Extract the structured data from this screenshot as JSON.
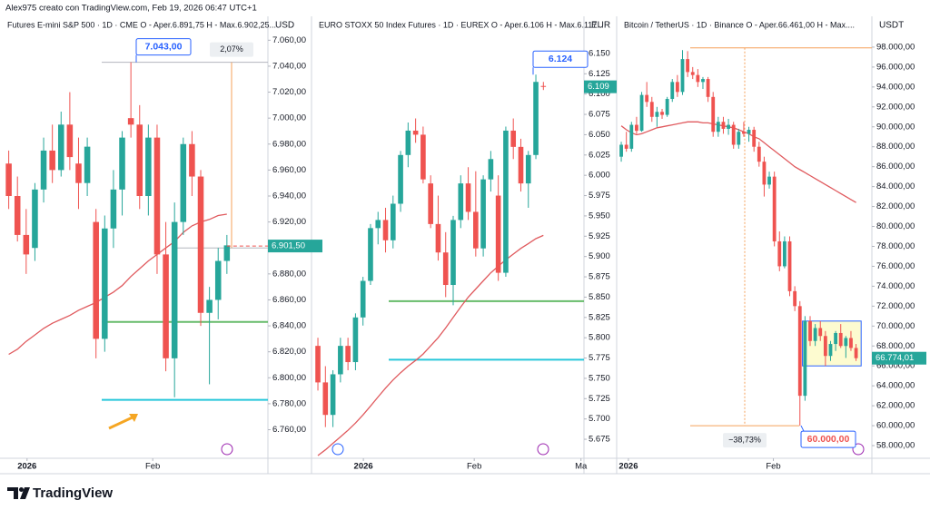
{
  "header": "Alex975 creato con TradingView.com, Feb 19, 2026 06:47 UTC+1",
  "footer": "TradingView",
  "chart_data": [
    {
      "type": "candlestick",
      "title": "Futures E-mini S&P 500 · 1D · CME  O - Aper.6.891,75  H - Max.6.902,25...",
      "currency": "USD",
      "up_color": "#26a69a",
      "down_color": "#ef5350",
      "ohlc": [
        [
          6965,
          6975,
          6930,
          6940
        ],
        [
          6940,
          6955,
          6905,
          6910
        ],
        [
          6910,
          6930,
          6880,
          6895
        ],
        [
          6900,
          6950,
          6890,
          6945
        ],
        [
          6945,
          6985,
          6935,
          6975
        ],
        [
          6975,
          6995,
          6950,
          6960
        ],
        [
          6960,
          7005,
          6955,
          6995
        ],
        [
          6995,
          7020,
          6960,
          6970
        ],
        [
          6965,
          6985,
          6930,
          6950
        ],
        [
          6950,
          6985,
          6940,
          6978
        ],
        [
          6920,
          6930,
          6815,
          6830
        ],
        [
          6830,
          6925,
          6820,
          6915
        ],
        [
          6915,
          6960,
          6900,
          6945
        ],
        [
          6945,
          6990,
          6925,
          6985
        ],
        [
          7000,
          7043,
          6985,
          6995
        ],
        [
          6995,
          7010,
          6930,
          6940
        ],
        [
          6940,
          6995,
          6925,
          6985
        ],
        [
          6985,
          6995,
          6880,
          6895
        ],
        [
          6895,
          6920,
          6805,
          6815
        ],
        [
          6815,
          6935,
          6785,
          6920
        ],
        [
          6920,
          6985,
          6910,
          6980
        ],
        [
          6980,
          6990,
          6940,
          6955
        ],
        [
          6955,
          6960,
          6840,
          6850
        ],
        [
          6850,
          6870,
          6795,
          6860
        ],
        [
          6860,
          6900,
          6845,
          6890
        ],
        [
          6890,
          6910,
          6880,
          6902
        ]
      ],
      "ma": {
        "color": "#e05a5e",
        "values": [
          6818,
          6822,
          6828,
          6833,
          6838,
          6842,
          6845,
          6848,
          6852,
          6855,
          6858,
          6862,
          6866,
          6871,
          6878,
          6884,
          6890,
          6895,
          6900,
          6905,
          6912,
          6917,
          6920,
          6922,
          6925,
          6926
        ]
      },
      "levels": [
        {
          "value": 6843,
          "color": "#66bb6a"
        },
        {
          "value": 6783,
          "color": "#26c6da"
        }
      ],
      "ylim": [
        6738,
        7077
      ],
      "yticks": [
        {
          "value": 6760,
          "label": "6.760,00"
        },
        {
          "value": 6780,
          "label": "6.780,00"
        },
        {
          "value": 6800,
          "label": "6.800,00"
        },
        {
          "value": 6820,
          "label": "6.820,00"
        },
        {
          "value": 6840,
          "label": "6.840,00"
        },
        {
          "value": 6860,
          "label": "6.860,00"
        },
        {
          "value": 6880,
          "label": "6.880,00"
        },
        {
          "value": 6900,
          "label": "6.900,00"
        },
        {
          "value": 6920,
          "label": "6.920,00"
        },
        {
          "value": 6940,
          "label": "6.940,00"
        },
        {
          "value": 6960,
          "label": "6.960,00"
        },
        {
          "value": 6980,
          "label": "6.980,00"
        },
        {
          "value": 7000,
          "label": "7.000,00"
        },
        {
          "value": 7020,
          "label": "7.020,00"
        },
        {
          "value": 7040,
          "label": "7.040,00"
        },
        {
          "value": 7060,
          "label": "7.060,00"
        }
      ],
      "xlim": [
        -1,
        29.7
      ],
      "xticks": [
        {
          "value": 2.1,
          "label": "2026"
        },
        {
          "value": 16.5,
          "label": "Feb"
        }
      ],
      "price_tag": {
        "value": 6901.5,
        "label": "6.901,50",
        "color": "#26a69a"
      },
      "callout": {
        "value": 7043,
        "label": "7.043,00",
        "color": "#2962ff"
      },
      "measure": {
        "from": 6900,
        "to": 7043,
        "value": 2.07,
        "label": "2,07%",
        "color": "#f5a05a"
      }
    },
    {
      "type": "candlestick",
      "title": "EURO STOXX 50 Index Futures · 1D · EUREX  O - Aper.6.106  H - Max.6.117...",
      "currency": "EUR",
      "up_color": "#26a69a",
      "down_color": "#ef5350",
      "ohlc": [
        [
          5790,
          5800,
          5735,
          5745
        ],
        [
          5745,
          5765,
          5690,
          5705
        ],
        [
          5705,
          5760,
          5690,
          5755
        ],
        [
          5755,
          5800,
          5745,
          5790
        ],
        [
          5790,
          5800,
          5760,
          5770
        ],
        [
          5770,
          5830,
          5760,
          5825
        ],
        [
          5825,
          5875,
          5815,
          5870
        ],
        [
          5870,
          5940,
          5865,
          5935
        ],
        [
          5935,
          5955,
          5915,
          5945
        ],
        [
          5945,
          5960,
          5905,
          5920
        ],
        [
          5920,
          5975,
          5910,
          5965
        ],
        [
          5965,
          6030,
          5955,
          6025
        ],
        [
          6025,
          6065,
          6010,
          6055
        ],
        [
          6055,
          6070,
          6040,
          6050
        ],
        [
          6050,
          6060,
          5990,
          5995
        ],
        [
          5990,
          6000,
          5935,
          5940
        ],
        [
          5940,
          5975,
          5895,
          5905
        ],
        [
          5905,
          5930,
          5850,
          5865
        ],
        [
          5865,
          5950,
          5840,
          5945
        ],
        [
          5945,
          6000,
          5935,
          5990
        ],
        [
          5990,
          6010,
          5945,
          5955
        ],
        [
          5955,
          6005,
          5900,
          5910
        ],
        [
          5910,
          6000,
          5900,
          5995
        ],
        [
          5995,
          6030,
          5980,
          6020
        ],
        [
          5975,
          6000,
          5870,
          5880
        ],
        [
          5880,
          6060,
          5875,
          6055
        ],
        [
          6055,
          6070,
          6020,
          6035
        ],
        [
          6035,
          6045,
          5980,
          5990
        ],
        [
          5990,
          6030,
          5960,
          6025
        ],
        [
          6025,
          6124,
          6020,
          6115
        ],
        [
          6110,
          6115,
          6105,
          6109
        ]
      ],
      "ma": {
        "color": "#e05a5e",
        "values": [
          5655,
          5662,
          5670,
          5678,
          5686,
          5695,
          5705,
          5716,
          5727,
          5738,
          5748,
          5757,
          5765,
          5772,
          5780,
          5790,
          5800,
          5812,
          5825,
          5838,
          5850,
          5860,
          5870,
          5880,
          5888,
          5896,
          5903,
          5910,
          5916,
          5922,
          5926
        ]
      },
      "levels": [
        {
          "value": 5845,
          "color": "#66bb6a"
        },
        {
          "value": 5773,
          "color": "#26c6da"
        }
      ],
      "ylim": [
        5651.6,
        6193.5
      ],
      "yticks": [
        {
          "value": 5675,
          "label": "5.675"
        },
        {
          "value": 5700,
          "label": "5.700"
        },
        {
          "value": 5725,
          "label": "5.725"
        },
        {
          "value": 5750,
          "label": "5.750"
        },
        {
          "value": 5775,
          "label": "5.775"
        },
        {
          "value": 5800,
          "label": "5.800"
        },
        {
          "value": 5825,
          "label": "5.825"
        },
        {
          "value": 5850,
          "label": "5.850"
        },
        {
          "value": 5875,
          "label": "5.875"
        },
        {
          "value": 5900,
          "label": "5.900"
        },
        {
          "value": 5925,
          "label": "5.925"
        },
        {
          "value": 5950,
          "label": "5.950"
        },
        {
          "value": 5975,
          "label": "5.975"
        },
        {
          "value": 6000,
          "label": "6.000"
        },
        {
          "value": 6025,
          "label": "6.025"
        },
        {
          "value": 6050,
          "label": "6.050"
        },
        {
          "value": 6075,
          "label": "6.075"
        },
        {
          "value": 6100,
          "label": "6.100"
        },
        {
          "value": 6125,
          "label": "6.125"
        },
        {
          "value": 6150,
          "label": "6.150"
        }
      ],
      "xlim": [
        -0.85,
        35.4
      ],
      "xticks": [
        {
          "value": 6.05,
          "label": "2026"
        },
        {
          "value": 20.8,
          "label": "Feb"
        },
        {
          "value": 35.0,
          "label": "Ma"
        }
      ],
      "price_tag": {
        "value": 6109,
        "label": "6.109",
        "color": "#26a69a"
      },
      "callout": {
        "value": 6124,
        "label": "6.124",
        "color": "#2962ff"
      }
    },
    {
      "type": "candlestick",
      "title": "Bitcoin / TetherUS · 1D · Binance  O - Aper.66.461,00  H - Max....",
      "currency": "USDT",
      "up_color": "#26a69a",
      "down_color": "#ef5350",
      "ohlc": [
        [
          87000,
          88500,
          86500,
          88200
        ],
        [
          88200,
          89500,
          87500,
          87800
        ],
        [
          87800,
          90500,
          87500,
          90200
        ],
        [
          90200,
          91000,
          89300,
          89600
        ],
        [
          89600,
          93500,
          89500,
          93200
        ],
        [
          93200,
          94500,
          92000,
          92500
        ],
        [
          92500,
          93000,
          90500,
          91000
        ],
        [
          91000,
          92000,
          90000,
          91500
        ],
        [
          91500,
          91800,
          90800,
          91200
        ],
        [
          91200,
          93000,
          91000,
          92800
        ],
        [
          92800,
          94800,
          92500,
          94500
        ],
        [
          94500,
          95200,
          93000,
          93500
        ],
        [
          93500,
          97700,
          93200,
          96800
        ],
        [
          96800,
          97600,
          95000,
          95500
        ],
        [
          95500,
          96000,
          94800,
          95200
        ],
        [
          95200,
          95800,
          94000,
          94500
        ],
        [
          94500,
          95000,
          93800,
          94800
        ],
        [
          94800,
          95000,
          92500,
          93000
        ],
        [
          93000,
          93500,
          89000,
          89500
        ],
        [
          89500,
          91000,
          89000,
          90500
        ],
        [
          90500,
          91000,
          89300,
          89800
        ],
        [
          89800,
          90800,
          89200,
          90200
        ],
        [
          90200,
          90500,
          87800,
          88200
        ],
        [
          88200,
          89800,
          87800,
          89500
        ],
        [
          89500,
          90500,
          89000,
          89300
        ],
        [
          89300,
          90000,
          88500,
          89700
        ],
        [
          89700,
          90000,
          87500,
          88000
        ],
        [
          88000,
          88500,
          86000,
          86500
        ],
        [
          86500,
          87000,
          83000,
          84200
        ],
        [
          84200,
          85500,
          83800,
          85000
        ],
        [
          85000,
          85500,
          78000,
          78500
        ],
        [
          78500,
          79500,
          75500,
          76000
        ],
        [
          76000,
          79000,
          75800,
          78500
        ],
        [
          78500,
          79000,
          73000,
          73500
        ],
        [
          73500,
          74000,
          71500,
          72000
        ],
        [
          72000,
          72500,
          60000,
          63000
        ],
        [
          63000,
          71000,
          62500,
          70500
        ],
        [
          70500,
          71000,
          68000,
          68500
        ],
        [
          68500,
          70200,
          68000,
          69800
        ],
        [
          69800,
          70500,
          68500,
          69000
        ],
        [
          69000,
          69500,
          66000,
          67000
        ],
        [
          67000,
          68500,
          66500,
          68200
        ],
        [
          68200,
          69500,
          67500,
          69300
        ],
        [
          69300,
          70200,
          67800,
          68000
        ],
        [
          68000,
          69000,
          66800,
          68800
        ],
        [
          68800,
          69500,
          67500,
          67800
        ],
        [
          67800,
          68200,
          66500,
          66774.01
        ]
      ],
      "ma": {
        "color": "#e05a5e",
        "values": [
          90100,
          89700,
          89400,
          89200,
          89300,
          89500,
          89700,
          89900,
          90000,
          90100,
          90200,
          90300,
          90400,
          90500,
          90500,
          90500,
          90400,
          90400,
          90300,
          90200,
          90100,
          90000,
          89900,
          89700,
          89500,
          89300,
          89000,
          88800,
          88400,
          88000,
          87600,
          87200,
          86800,
          86400,
          86000,
          85700,
          85400,
          85100,
          84800,
          84500,
          84200,
          83900,
          83600,
          83300,
          83000,
          82700,
          82400
        ]
      },
      "zone": {
        "low": 66000,
        "high": 70500,
        "fill": "#fdfbd0",
        "stroke": "#2962ff"
      },
      "ylim": [
        56727,
        100909
      ],
      "yticks": [
        {
          "value": 58000,
          "label": "58.000,00"
        },
        {
          "value": 60000,
          "label": "60.000,00"
        },
        {
          "value": 62000,
          "label": "62.000,00"
        },
        {
          "value": 64000,
          "label": "64.000,00"
        },
        {
          "value": 66000,
          "label": "66.000,00"
        },
        {
          "value": 68000,
          "label": "68.000,00"
        },
        {
          "value": 70000,
          "label": "70.000,00"
        },
        {
          "value": 72000,
          "label": "72.000,00"
        },
        {
          "value": 74000,
          "label": "74.000,00"
        },
        {
          "value": 76000,
          "label": "76.000,00"
        },
        {
          "value": 78000,
          "label": "78.000,00"
        },
        {
          "value": 80000,
          "label": "80.000,00"
        },
        {
          "value": 82000,
          "label": "82.000,00"
        },
        {
          "value": 84000,
          "label": "84.000,00"
        },
        {
          "value": 86000,
          "label": "86.000,00"
        },
        {
          "value": 88000,
          "label": "88.000,00"
        },
        {
          "value": 90000,
          "label": "90.000,00"
        },
        {
          "value": 92000,
          "label": "92.000,00"
        },
        {
          "value": 94000,
          "label": "94.000,00"
        },
        {
          "value": 96000,
          "label": "96.000,00"
        },
        {
          "value": 98000,
          "label": "98.000,00"
        }
      ],
      "xlim": [
        -0.9,
        49.1
      ],
      "xticks": [
        {
          "value": 1.4,
          "label": "2026"
        },
        {
          "value": 29.8,
          "label": "Feb"
        }
      ],
      "price_tag": {
        "value": 66774.01,
        "label": "66.774,01",
        "color": "#26a69a"
      },
      "callout": {
        "value": 60000,
        "label": "60.000,00",
        "color": "#ef5350"
      },
      "measure": {
        "from": 97924,
        "to": 60000,
        "value": -38.73,
        "label": "−38,73%",
        "color": "#f5a05a"
      }
    }
  ]
}
